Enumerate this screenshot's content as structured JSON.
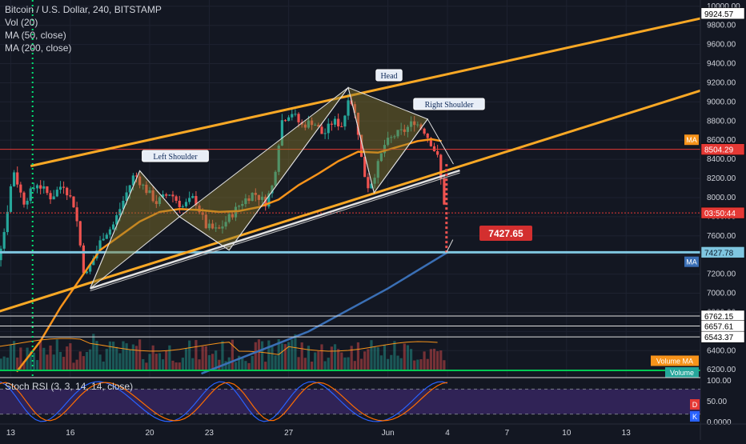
{
  "legend": {
    "title": "Bitcoin / U.S. Dollar, 240, BITSTAMP",
    "vol": "Vol (20)",
    "ma50": "MA (50, close)",
    "ma200": "MA (200, close)"
  },
  "stoch_label": "Stoch RSI (3, 3, 14, 14, close)",
  "colors": {
    "background": "#131722",
    "up": "#26a69a",
    "down": "#ef5350",
    "ma50": "#f7931a",
    "ma200": "#3a6fb5",
    "channel": "#f9a825",
    "pattern_fill": "#8a7a2a",
    "support": "#7fc6e0",
    "resistance": "#e53935",
    "volume_line": "#00c853",
    "stoch_k": "#2962ff",
    "stoch_d": "#ff6d00",
    "stoch_band": "#4a2d6b"
  },
  "chart_data": {
    "type": "candlestick",
    "title": "Bitcoin / U.S. Dollar, 240, BITSTAMP",
    "price_axis": {
      "ticks": [
        "10000.00",
        "9800.00",
        "9600.00",
        "9400.00",
        "9200.00",
        "9000.00",
        "8800.00",
        "8600.00",
        "8400.00",
        "8200.00",
        "8000.00",
        "7800.00",
        "7600.00",
        "7400.00",
        "7200.00",
        "7000.00",
        "6800.00",
        "6600.00",
        "6400.00",
        "6200.00"
      ],
      "ylim": [
        6160,
        10040
      ]
    },
    "x_axis": {
      "ticks": [
        "13",
        "16",
        "20",
        "23",
        "27",
        "Jun",
        "4",
        "7",
        "10",
        "13"
      ]
    },
    "price_labels": [
      {
        "text": "9924.57",
        "style": "white",
        "value": 9924.57
      },
      {
        "text": "8504.29",
        "style": "red",
        "value": 8504.29
      },
      {
        "text": "03:50:44",
        "style": "red",
        "value": 7840
      },
      {
        "text": "7427.78",
        "style": "blue",
        "value": 7427.78
      },
      {
        "text": "6762.15",
        "style": "white",
        "value": 6762.15
      },
      {
        "text": "6657.61",
        "style": "white",
        "value": 6657.61
      },
      {
        "text": "6543.37",
        "style": "white",
        "value": 6543.37
      }
    ],
    "side_tags": [
      {
        "text": "MA",
        "value": 8600,
        "color": "#f7931a"
      },
      {
        "text": "MA",
        "value": 7325,
        "color": "#3a6fb5"
      },
      {
        "text": "Volume MA",
        "value": 6290,
        "color": "#f7931a"
      },
      {
        "text": "Volume",
        "value": 6160,
        "color": "#26a69a"
      }
    ],
    "target_label": "7427.65",
    "pattern_labels": {
      "left_shoulder": "Left Shoulder",
      "head": "Head",
      "right_shoulder": "Right Shoulder"
    },
    "pattern_points": [
      {
        "x": "May 17",
        "y": 7050
      },
      {
        "x": "May 19.5",
        "y": 8280
      },
      {
        "x": "May 21.5",
        "y": 7800
      },
      {
        "x": "May 24",
        "y": 7450
      },
      {
        "x": "May 30",
        "y": 9150
      },
      {
        "x": "May 31.3",
        "y": 8050
      },
      {
        "x": "Jun 3",
        "y": 8820
      },
      {
        "x": "Jun 4.3",
        "y": 8350
      }
    ],
    "channel_upper": [
      {
        "x": "May 14",
        "y": 8330
      },
      {
        "x": "Jun 18",
        "y": 9930
      }
    ],
    "channel_lower": [
      {
        "x": "May 11.5",
        "y": 6750
      },
      {
        "x": "Jun 18",
        "y": 9200
      }
    ],
    "support_line": 7427.78,
    "resistance_line": 8504.29,
    "stoch_axis": {
      "ticks": [
        "100.00",
        "50.00",
        "0.0000"
      ]
    },
    "stoch_tags": [
      "D",
      "K"
    ]
  }
}
